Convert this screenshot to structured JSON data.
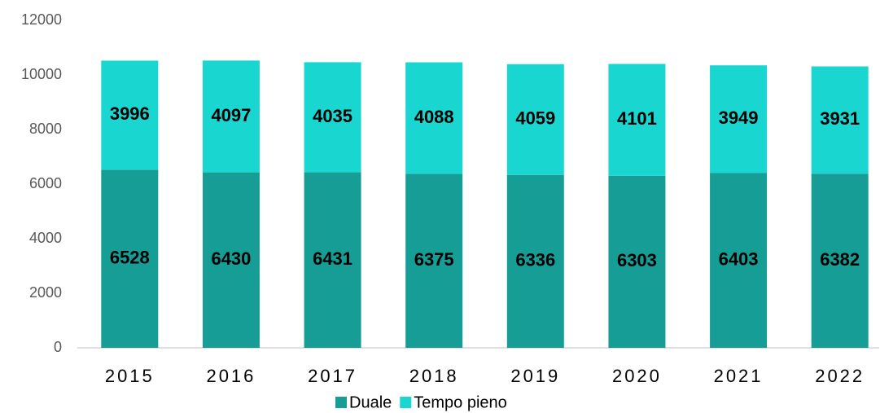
{
  "chart_data": {
    "type": "stacked_bar",
    "categories": [
      "2015",
      "2016",
      "2017",
      "2018",
      "2019",
      "2020",
      "2021",
      "2022"
    ],
    "series": [
      {
        "name": "Duale",
        "color": "#169e96",
        "values": [
          6528,
          6430,
          6431,
          6375,
          6336,
          6303,
          6403,
          6382
        ]
      },
      {
        "name": "Tempo pieno",
        "color": "#1ad6d0",
        "values": [
          3996,
          4097,
          4035,
          4088,
          4059,
          4101,
          3949,
          3931
        ]
      }
    ],
    "ylim": [
      0,
      12000
    ],
    "yticks": [
      0,
      2000,
      4000,
      6000,
      8000,
      10000,
      12000
    ],
    "grid": false,
    "legend": "bottom"
  }
}
